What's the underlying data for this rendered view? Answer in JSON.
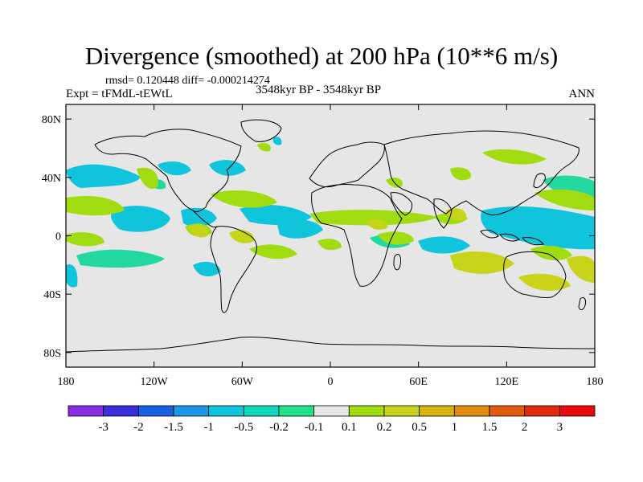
{
  "title": "Divergence (smoothed) at 200 hPa (10**6 m/s)",
  "stats": "rmsd= 0.120448 diff= -0.000214274",
  "experiment": "Expt = tFMdL-tEWtL",
  "period": "3548kyr BP - 3548kyr BP",
  "season": "ANN",
  "lat_labels": [
    "80N",
    "40N",
    "0",
    "40S",
    "80S"
  ],
  "lon_labels": [
    "180",
    "120W",
    "60W",
    "0",
    "60E",
    "120E",
    "180"
  ],
  "colorbar": {
    "labels": [
      "-3",
      "-2",
      "-1.5",
      "-1",
      "-0.5",
      "-0.2",
      "-0.1",
      "0.1",
      "0.2",
      "0.5",
      "1",
      "1.5",
      "2",
      "3"
    ],
    "colors": [
      "#8a2be2",
      "#3a2fd6",
      "#1a5fe0",
      "#1a98e6",
      "#10c4dc",
      "#10d8b8",
      "#22e08c",
      "#e6e6e6",
      "#a0dc10",
      "#c8d41a",
      "#d8b410",
      "#e08c10",
      "#e05a10",
      "#e02a10",
      "#e80a0a"
    ]
  },
  "map_colors": {
    "background": "#e6e6e6",
    "cyan": "#10c4dc",
    "teal": "#22d8a0",
    "green": "#a0dc10",
    "olive": "#c8d41a",
    "coast": "#000000"
  }
}
